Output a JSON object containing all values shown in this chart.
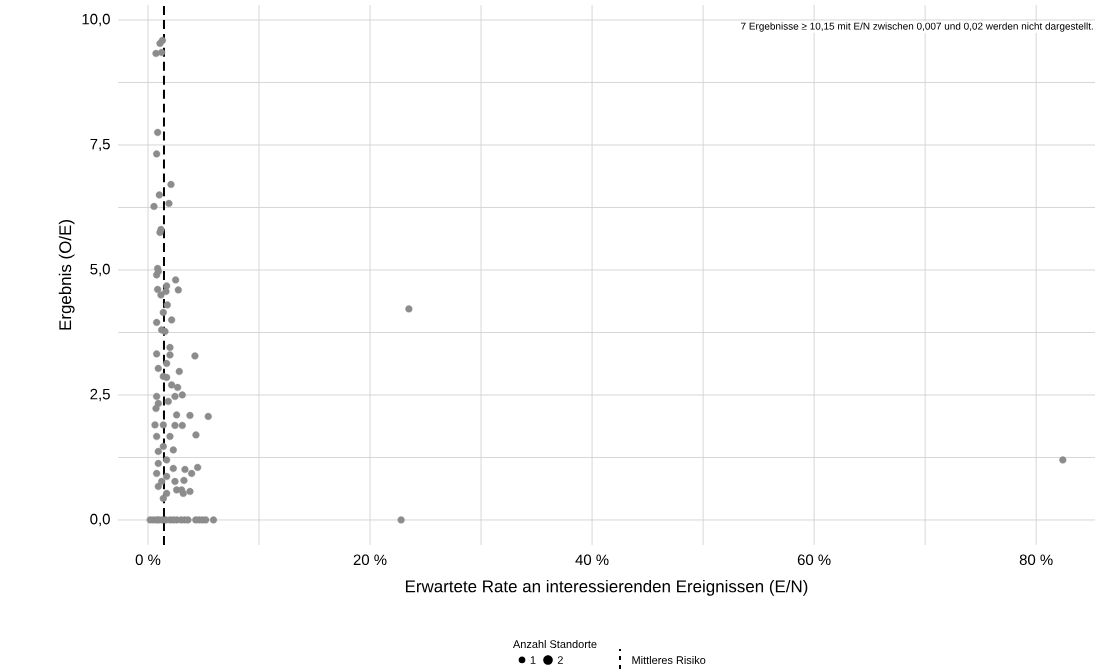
{
  "chart_data": {
    "type": "bubble",
    "xlabel": "Erwartete Rate an interessierenden Ereignissen (E/N)",
    "ylabel": "Ergebnis (O/E)",
    "annotations": [
      "7 Ergebnisse ≥ 10,15 mit E/N zwischen 0,007 und 0,02 werden nicht dargestellt."
    ],
    "legend_title": "Anzahl Standorte",
    "color": "#8c8c8c",
    "x": [
      1.3,
      1.08,
      0.72,
      1.23,
      0.87,
      0.78,
      2.07,
      1.02,
      1.89,
      0.54,
      1.17,
      1.08,
      0.87,
      0.93,
      0.78,
      2.49,
      1.68,
      0.87,
      2.73,
      1.62,
      1.17,
      1.74,
      1.38,
      2.13,
      0.78,
      1.23,
      1.53,
      1.98,
      0.78,
      4.23,
      1.98,
      0.93,
      1.68,
      2.82,
      1.38,
      1.68,
      2.13,
      2.67,
      2.43,
      3.09,
      0.78,
      0.93,
      0.72,
      1.83,
      3.78,
      5.43,
      2.58,
      0.63,
      1.38,
      2.43,
      3.09,
      4.32,
      1.98,
      0.78,
      1.38,
      2.28,
      0.93,
      1.68,
      0.93,
      4.47,
      3.33,
      2.28,
      3.93,
      0.78,
      1.68,
      3.24,
      1.23,
      2.43,
      0.93,
      2.58,
      3.03,
      3.78,
      3.18,
      1.68,
      1.38,
      23.5,
      82.4,
      0.2,
      0.5,
      0.8,
      1.0,
      1.3,
      1.6,
      2.0,
      2.3,
      2.6,
      3.0,
      3.3,
      3.6,
      4.3,
      4.6,
      4.9,
      5.2,
      5.9,
      22.8
    ],
    "values": [
      9.59,
      9.53,
      9.33,
      9.35,
      7.75,
      7.32,
      6.71,
      6.5,
      6.33,
      6.27,
      5.81,
      5.75,
      5.03,
      4.97,
      4.9,
      4.8,
      4.68,
      4.61,
      4.6,
      4.57,
      4.5,
      4.3,
      4.15,
      4.0,
      3.95,
      3.8,
      3.77,
      3.45,
      3.32,
      3.28,
      3.3,
      3.03,
      3.13,
      2.97,
      2.87,
      2.85,
      2.7,
      2.65,
      2.47,
      2.5,
      2.47,
      2.33,
      2.23,
      2.37,
      2.09,
      2.07,
      2.1,
      1.9,
      1.9,
      1.89,
      1.89,
      1.7,
      1.67,
      1.67,
      1.47,
      1.4,
      1.37,
      1.2,
      1.13,
      1.05,
      1.01,
      1.03,
      0.93,
      0.93,
      0.87,
      0.79,
      0.77,
      0.77,
      0.67,
      0.6,
      0.6,
      0.57,
      0.53,
      0.53,
      0.43,
      4.22,
      1.2,
      0,
      0,
      0,
      0,
      0,
      0,
      0,
      0,
      0,
      0,
      0,
      0,
      0,
      0,
      0,
      0,
      0,
      0
    ],
    "sizes": [
      1,
      1,
      1,
      1,
      1,
      1,
      1,
      1,
      1,
      1,
      1,
      1,
      1,
      1,
      1,
      1,
      1,
      1,
      1,
      1,
      1,
      1,
      1,
      1,
      1,
      1,
      1,
      1,
      1,
      1,
      1,
      1,
      1,
      1,
      1,
      1,
      1,
      1,
      1,
      1,
      1,
      1,
      1,
      1,
      1,
      1,
      1,
      1,
      1,
      1,
      1,
      1,
      1,
      1,
      1,
      1,
      1,
      1,
      1,
      1,
      1,
      1,
      1,
      1,
      1,
      1,
      1,
      1,
      1,
      1,
      1,
      1,
      1,
      1,
      1,
      1,
      1,
      1,
      1,
      1,
      1,
      1,
      1,
      1,
      1,
      1,
      1,
      1,
      1,
      1,
      1,
      1,
      1,
      1,
      1
    ],
    "size_legend": [
      {
        "value": 1,
        "label": "1"
      },
      {
        "value": 2,
        "label": "2"
      }
    ],
    "xlim": [
      -2.7,
      85.3
    ],
    "ylim": [
      -0.5,
      10.3
    ],
    "xticks": [
      {
        "value": 0,
        "label": "0 %"
      },
      {
        "value": 10,
        "label": null
      },
      {
        "value": 20,
        "label": "20 %"
      },
      {
        "value": 30,
        "label": null
      },
      {
        "value": 40,
        "label": "40 %"
      },
      {
        "value": 50,
        "label": null
      },
      {
        "value": 60,
        "label": "60 %"
      },
      {
        "value": 70,
        "label": null
      },
      {
        "value": 80,
        "label": "80 %"
      }
    ],
    "yticks": [
      {
        "value": 0,
        "label": "0,0"
      },
      {
        "value": 1.25,
        "label": null
      },
      {
        "value": 2.5,
        "label": "2,5"
      },
      {
        "value": 3.75,
        "label": null
      },
      {
        "value": 5,
        "label": "5,0"
      },
      {
        "value": 6.25,
        "label": null
      },
      {
        "value": 7.5,
        "label": "7,5"
      },
      {
        "value": 8.75,
        "label": null
      },
      {
        "value": 10,
        "label": "10,0"
      }
    ],
    "grid": true,
    "legend": "bottom",
    "ref_lines": [
      {
        "axis": "x",
        "value": 1.44,
        "label": "Mittleres Risiko",
        "line_style": "dashed",
        "color": "#000000"
      }
    ]
  }
}
